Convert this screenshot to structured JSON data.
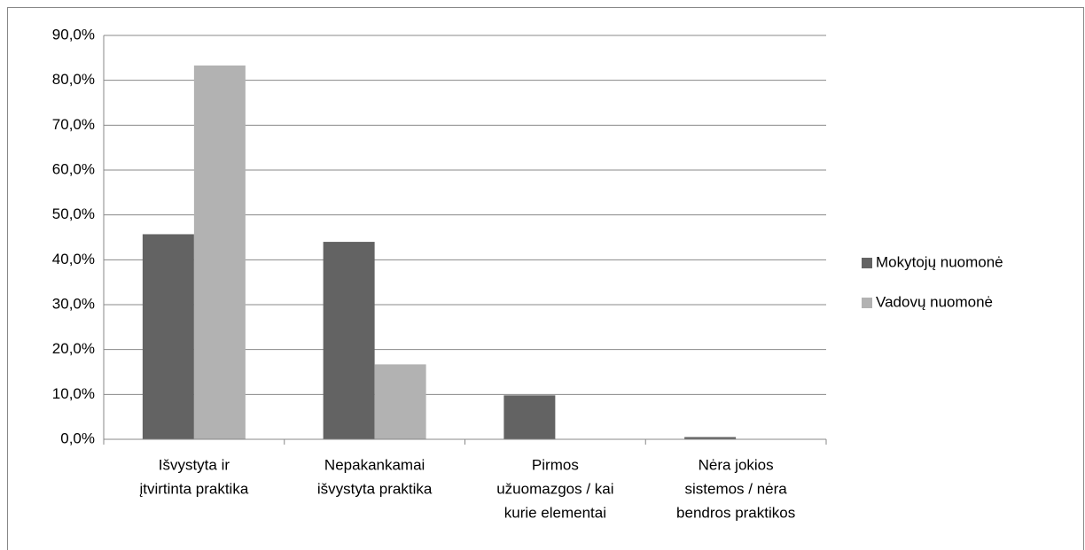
{
  "chart_data": {
    "type": "bar",
    "categories": [
      [
        "Išvystyta ir",
        "įtvirtinta praktika"
      ],
      [
        "Nepakankamai",
        "išvystyta praktika"
      ],
      [
        "Pirmos",
        "užuomazgos / kai",
        "kurie elementai"
      ],
      [
        "Nėra jokios",
        "sistemos / nėra",
        "bendros praktikos"
      ]
    ],
    "series": [
      {
        "name": "Mokytojų nuomonė",
        "color": "#636363",
        "values": [
          45.7,
          44.0,
          9.8,
          0.5
        ]
      },
      {
        "name": "Vadovų nuomonė",
        "color": "#b2b2b2",
        "values": [
          83.3,
          16.7,
          0,
          0
        ]
      }
    ],
    "ylim": [
      0,
      90
    ],
    "yticks": [
      {
        "value": 0,
        "label": "0,0%"
      },
      {
        "value": 10,
        "label": "10,0%"
      },
      {
        "value": 20,
        "label": "20,0%"
      },
      {
        "value": 30,
        "label": "30,0%"
      },
      {
        "value": 40,
        "label": "40,0%"
      },
      {
        "value": 50,
        "label": "50,0%"
      },
      {
        "value": 60,
        "label": "60,0%"
      },
      {
        "value": 70,
        "label": "70,0%"
      },
      {
        "value": 80,
        "label": "80,0%"
      },
      {
        "value": 90,
        "label": "90,0%"
      }
    ],
    "grid": true,
    "legend": "right"
  }
}
